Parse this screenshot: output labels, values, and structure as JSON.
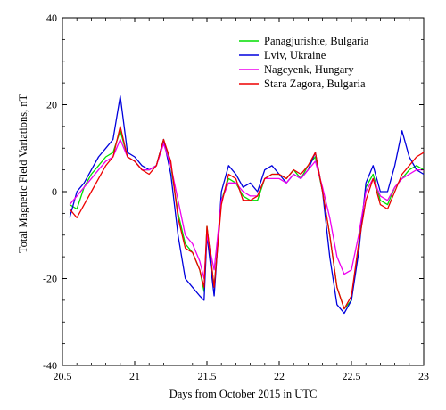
{
  "chart_data": {
    "type": "line",
    "title": "",
    "xlabel": "Days from October 2015 in UTC",
    "ylabel": "Total Magnetic Field Variations, nT",
    "xlim": [
      20.5,
      23
    ],
    "ylim": [
      -40,
      40
    ],
    "x_ticks": [
      20.5,
      21,
      21.5,
      22,
      22.5,
      23
    ],
    "x_tick_labels": [
      "20.5",
      "21",
      "21.5",
      "22",
      "22.5",
      "23"
    ],
    "y_ticks": [
      -40,
      -20,
      0,
      20,
      40
    ],
    "y_tick_labels": [
      "-40",
      "-20",
      "0",
      "20",
      "40"
    ],
    "grid": false,
    "legend_position": "top-right",
    "series": [
      {
        "name": "Panagjurishte, Bulgaria",
        "color": "#00dd00",
        "x": [
          20.55,
          20.6,
          20.65,
          20.7,
          20.75,
          20.8,
          20.85,
          20.9,
          20.95,
          21.0,
          21.05,
          21.1,
          21.15,
          21.2,
          21.25,
          21.3,
          21.35,
          21.4,
          21.45,
          21.48,
          21.5,
          21.55,
          21.6,
          21.65,
          21.7,
          21.75,
          21.8,
          21.85,
          21.9,
          21.95,
          22.0,
          22.05,
          22.1,
          22.15,
          22.2,
          22.25,
          22.3,
          22.35,
          22.4,
          22.45,
          22.5,
          22.55,
          22.6,
          22.65,
          22.7,
          22.75,
          22.8,
          22.85,
          22.9,
          22.95,
          23.0
        ],
        "y": [
          -3,
          -4,
          1,
          4,
          6,
          8,
          9,
          14,
          8,
          7,
          5,
          5,
          6,
          12,
          6,
          -5,
          -12,
          -14,
          -18,
          -23,
          -8,
          -22,
          -2,
          3,
          2,
          -1,
          -2,
          -2,
          3,
          4,
          4,
          3,
          5,
          3,
          6,
          8,
          0,
          -10,
          -22,
          -27,
          -25,
          -12,
          1,
          4,
          -2,
          -3,
          1,
          3,
          5,
          6,
          5
        ]
      },
      {
        "name": "Lviv, Ukraine",
        "color": "#0000dd",
        "x": [
          20.55,
          20.6,
          20.65,
          20.7,
          20.75,
          20.8,
          20.85,
          20.9,
          20.95,
          21.0,
          21.05,
          21.1,
          21.15,
          21.2,
          21.25,
          21.3,
          21.35,
          21.4,
          21.45,
          21.48,
          21.5,
          21.55,
          21.6,
          21.65,
          21.7,
          21.75,
          21.8,
          21.85,
          21.9,
          21.95,
          22.0,
          22.05,
          22.1,
          22.15,
          22.2,
          22.25,
          22.3,
          22.35,
          22.4,
          22.45,
          22.5,
          22.55,
          22.6,
          22.65,
          22.7,
          22.75,
          22.8,
          22.85,
          22.9,
          22.95,
          23.0
        ],
        "y": [
          -6,
          0,
          2,
          5,
          8,
          10,
          12,
          22,
          9,
          8,
          6,
          5,
          6,
          12,
          4,
          -10,
          -20,
          -22,
          -24,
          -25,
          -10,
          -24,
          0,
          6,
          4,
          1,
          2,
          0,
          5,
          6,
          4,
          2,
          4,
          3,
          5,
          9,
          0,
          -15,
          -26,
          -28,
          -25,
          -14,
          2,
          6,
          0,
          0,
          6,
          14,
          8,
          5,
          4
        ]
      },
      {
        "name": "Nagcyenk, Hungary",
        "color": "#ee00ee",
        "x": [
          20.55,
          20.6,
          20.65,
          20.7,
          20.75,
          20.8,
          20.85,
          20.9,
          20.95,
          21.0,
          21.05,
          21.1,
          21.15,
          21.2,
          21.25,
          21.3,
          21.35,
          21.4,
          21.45,
          21.48,
          21.5,
          21.55,
          21.6,
          21.65,
          21.7,
          21.75,
          21.8,
          21.85,
          21.9,
          21.95,
          22.0,
          22.05,
          22.1,
          22.15,
          22.2,
          22.25,
          22.3,
          22.35,
          22.4,
          22.45,
          22.5,
          22.55,
          22.6,
          22.65,
          22.7,
          22.75,
          22.8,
          22.85,
          22.9,
          22.95,
          23.0
        ],
        "y": [
          -3,
          -1,
          1,
          3,
          5,
          7,
          8,
          12,
          8,
          7,
          5,
          5,
          6,
          11,
          6,
          -2,
          -10,
          -12,
          -16,
          -20,
          -10,
          -18,
          -2,
          2,
          2,
          0,
          -1,
          -1,
          3,
          3,
          3,
          2,
          4,
          3,
          5,
          7,
          1,
          -6,
          -15,
          -19,
          -18,
          -10,
          0,
          3,
          -1,
          -2,
          1,
          3,
          4,
          5,
          5
        ]
      },
      {
        "name": "Stara Zagora, Bulgaria",
        "color": "#ee0000",
        "x": [
          20.55,
          20.6,
          20.65,
          20.7,
          20.75,
          20.8,
          20.85,
          20.9,
          20.95,
          21.0,
          21.05,
          21.1,
          21.15,
          21.2,
          21.25,
          21.3,
          21.35,
          21.4,
          21.45,
          21.48,
          21.5,
          21.55,
          21.6,
          21.65,
          21.7,
          21.75,
          21.8,
          21.85,
          21.9,
          21.95,
          22.0,
          22.05,
          22.1,
          22.15,
          22.2,
          22.25,
          22.3,
          22.35,
          22.4,
          22.45,
          22.5,
          22.55,
          22.6,
          22.65,
          22.7,
          22.75,
          22.8,
          22.85,
          22.9,
          22.95,
          23.0
        ],
        "y": [
          -4,
          -6,
          -3,
          0,
          3,
          6,
          8,
          15,
          8,
          7,
          5,
          4,
          6,
          12,
          7,
          -6,
          -13,
          -14,
          -18,
          -22,
          -8,
          -22,
          -3,
          4,
          3,
          -2,
          -2,
          -1,
          3,
          4,
          4,
          3,
          5,
          4,
          6,
          9,
          0,
          -10,
          -22,
          -27,
          -24,
          -12,
          -2,
          3,
          -3,
          -4,
          0,
          4,
          6,
          8,
          9
        ]
      }
    ]
  }
}
